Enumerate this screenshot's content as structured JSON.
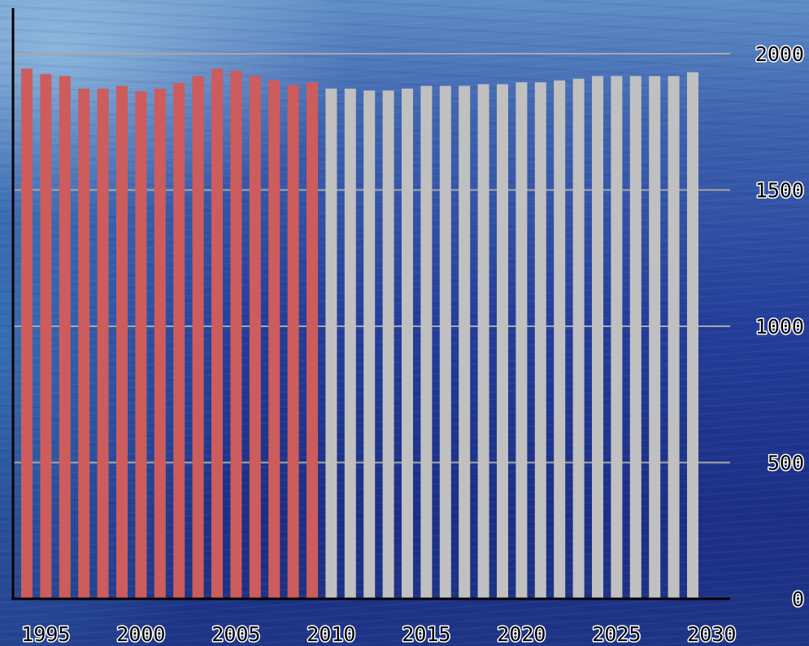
{
  "chart_data": {
    "type": "bar",
    "x": [
      1994,
      1995,
      1996,
      1997,
      1998,
      1999,
      2000,
      2001,
      2002,
      2003,
      2004,
      2005,
      2006,
      2007,
      2008,
      2009,
      2010,
      2011,
      2012,
      2013,
      2014,
      2015,
      2016,
      2017,
      2018,
      2019,
      2020,
      2021,
      2022,
      2023,
      2024,
      2025,
      2026,
      2027,
      2028,
      2029
    ],
    "series": [
      {
        "values": [
          1945,
          1925,
          1918,
          1872,
          1872,
          1882,
          1862,
          1872,
          1892,
          1918,
          1945,
          1938,
          1918,
          1902,
          1885,
          1895,
          null,
          null,
          null,
          null,
          null,
          null,
          null,
          null,
          null,
          null,
          null,
          null,
          null,
          null,
          null,
          null,
          null,
          null,
          null,
          null
        ],
        "color": "#cd5c5c"
      },
      {
        "values": [
          null,
          null,
          null,
          null,
          null,
          null,
          null,
          null,
          null,
          null,
          null,
          null,
          null,
          null,
          null,
          null,
          1872,
          1872,
          1865,
          1865,
          1872,
          1882,
          1882,
          1882,
          1888,
          1888,
          1895,
          1895,
          1902,
          1908,
          1918,
          1918,
          1918,
          1918,
          1918,
          1932
        ],
        "color": "#c0c0c0"
      }
    ],
    "x_ticks": [
      "1995",
      "2000",
      "2005",
      "2010",
      "2015",
      "2020",
      "2025",
      "2030"
    ],
    "y_ticks": [
      "0",
      "500",
      "1000",
      "1500",
      "2000"
    ],
    "ylim": [
      0,
      2000
    ],
    "y_axis_side": "right",
    "grid": true,
    "title": "",
    "xlabel": "",
    "ylabel": ""
  }
}
